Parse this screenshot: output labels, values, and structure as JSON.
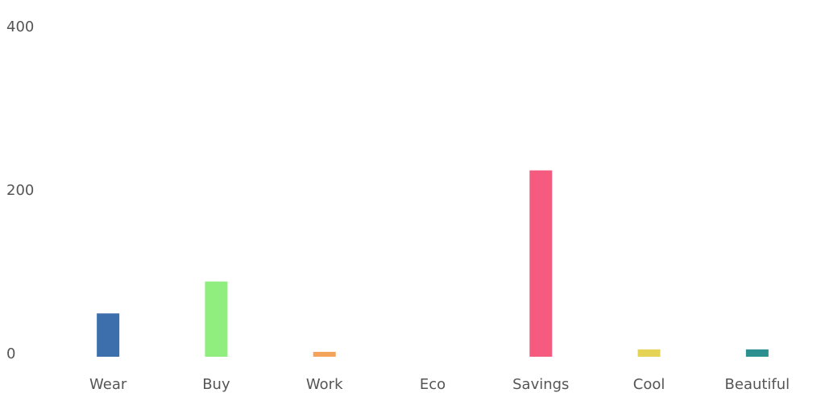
{
  "chart_data": {
    "type": "bar",
    "categories": [
      "Wear",
      "Buy",
      "Work",
      "Eco",
      "Savings",
      "Cool",
      "Beautiful"
    ],
    "values": [
      53,
      92,
      6,
      0,
      228,
      9,
      9
    ],
    "colors": [
      "#3d6fad",
      "#90ee7e",
      "#f4a35a",
      "#8085e9",
      "#f45b7f",
      "#e4d354",
      "#2b908f"
    ],
    "ylim": [
      0,
      400
    ],
    "yticks": [
      0,
      200,
      400
    ],
    "grid": false
  }
}
